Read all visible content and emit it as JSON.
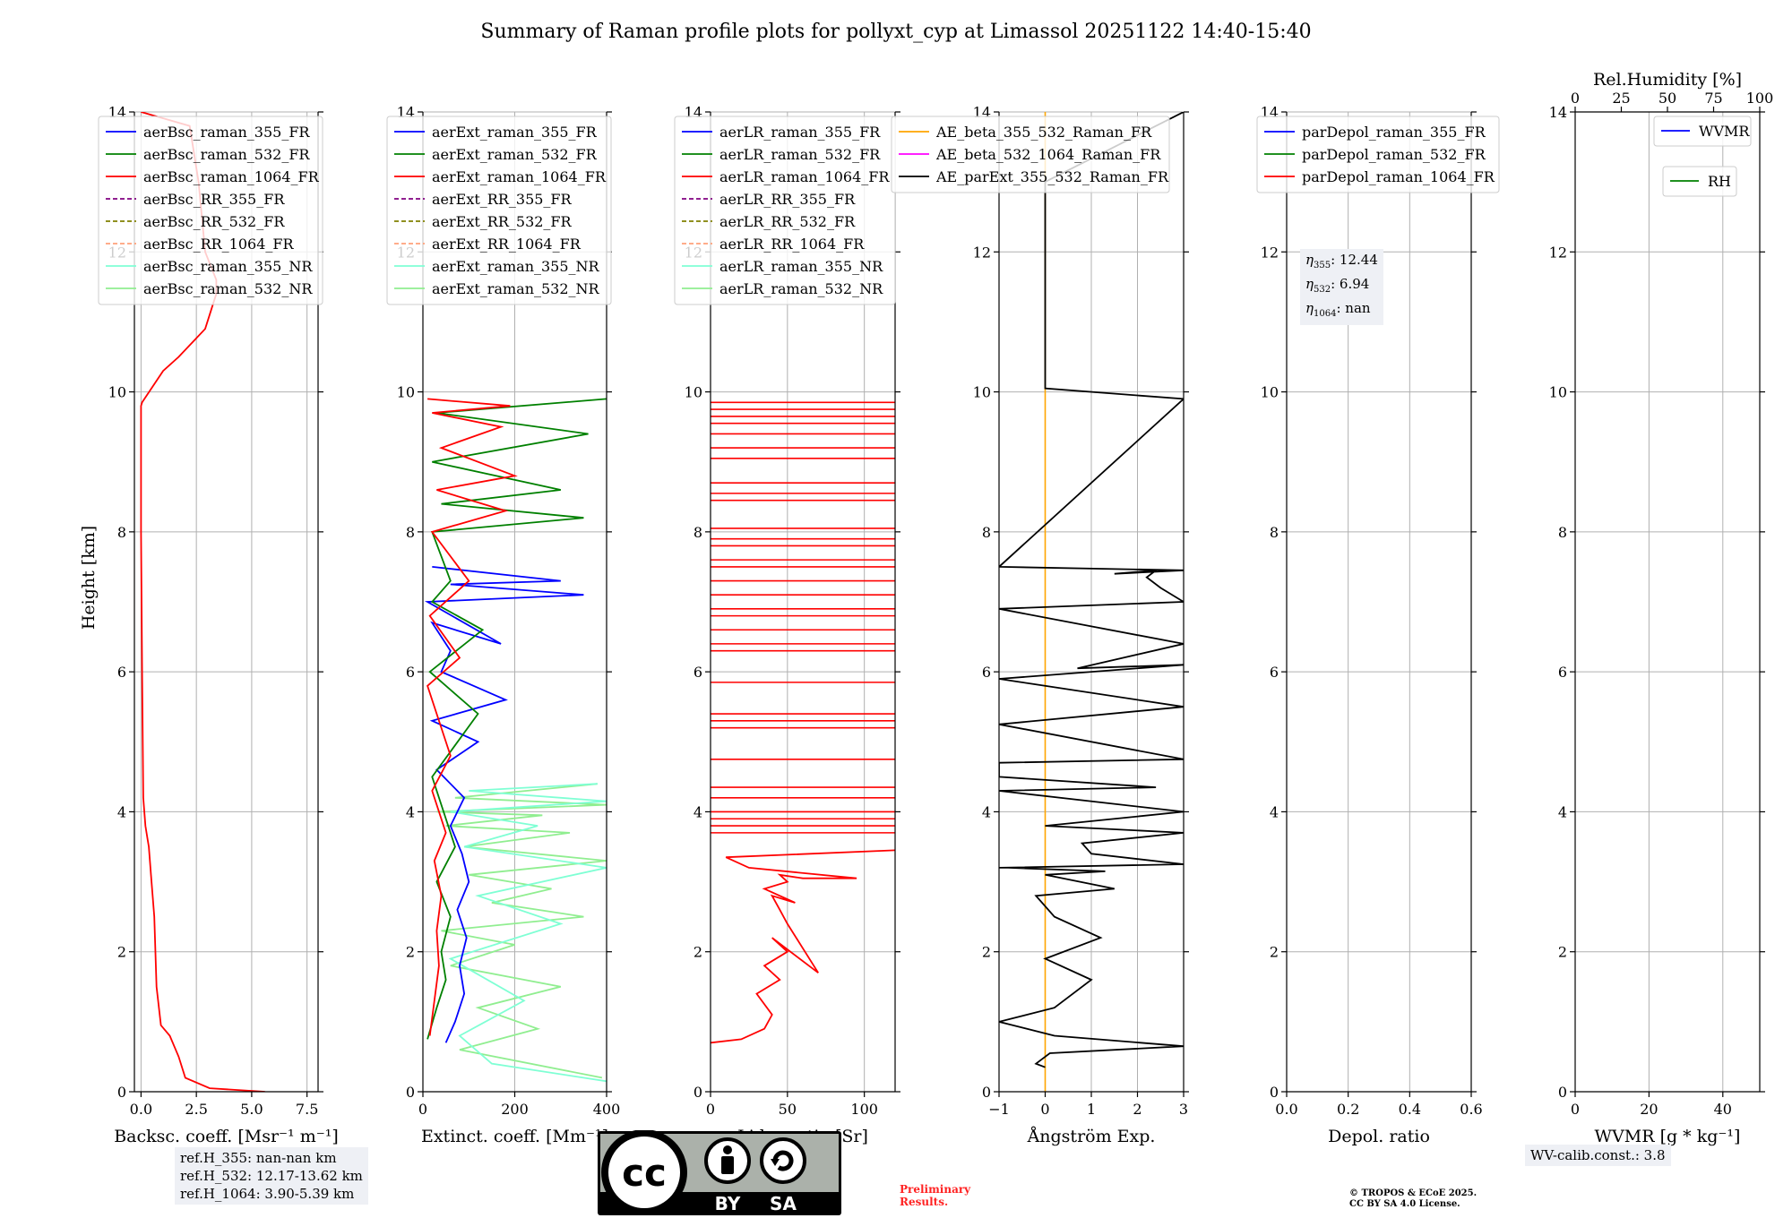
{
  "title": "Summary of Raman profile plots for pollyxt_cyp at Limassol 20251122 14:40-15:40",
  "chart_data": [
    {
      "type": "line",
      "panel": "backscatter",
      "xlabel": "Backsc. coeff. [Msr⁻¹ m⁻¹]",
      "ylabel": "Height [km]",
      "xlim": [
        -0.3,
        8.0
      ],
      "ylim": [
        0,
        14
      ],
      "xticks": [
        0.0,
        2.5,
        5.0,
        7.5
      ],
      "xtick_labels": [
        "0.0",
        "2.5",
        "5.0",
        "7.5"
      ],
      "yticks": [
        0,
        2,
        4,
        6,
        8,
        10,
        12,
        14
      ],
      "grid": true,
      "legend": "top",
      "legend_entries": [
        {
          "label": "aerBsc_raman_355_FR",
          "color": "#0000ff",
          "dash": false
        },
        {
          "label": "aerBsc_raman_532_FR",
          "color": "#008000",
          "dash": false
        },
        {
          "label": "aerBsc_raman_1064_FR",
          "color": "#ff0000",
          "dash": false
        },
        {
          "label": "aerBsc_RR_355_FR",
          "color": "#800080",
          "dash": true
        },
        {
          "label": "aerBsc_RR_532_FR",
          "color": "#808000",
          "dash": true
        },
        {
          "label": "aerBsc_RR_1064_FR",
          "color": "#ffa07a",
          "dash": true
        },
        {
          "label": "aerBsc_raman_355_NR",
          "color": "#7fffd4",
          "dash": false
        },
        {
          "label": "aerBsc_raman_532_NR",
          "color": "#90ee90",
          "dash": false
        }
      ],
      "series": [
        {
          "name": "aerBsc_raman_1064_FR",
          "color": "#ff0000",
          "x": [
            5.6,
            3.1,
            2.0,
            1.7,
            1.3,
            0.9,
            0.7,
            0.6,
            0.45,
            0.4,
            0.35,
            0.3,
            0.2,
            0.1,
            0.05,
            0.0,
            0.0,
            0.0,
            0.05,
            1.0,
            1.7,
            2.9,
            3.2,
            3.4,
            3.4,
            2.9,
            2.6,
            2.2,
            0.0
          ],
          "y": [
            0.0,
            0.05,
            0.2,
            0.5,
            0.8,
            0.95,
            1.5,
            2.5,
            3.1,
            3.3,
            3.5,
            3.6,
            3.8,
            4.2,
            6.0,
            8.0,
            9.5,
            9.8,
            9.85,
            10.3,
            10.5,
            10.9,
            11.2,
            11.4,
            11.6,
            12.0,
            13.0,
            13.8,
            14.0
          ]
        }
      ]
    },
    {
      "type": "line",
      "panel": "extinction",
      "xlabel": "Extinct. coeff. [Mm⁻¹]",
      "xlim": [
        0,
        400
      ],
      "ylim": [
        0,
        14
      ],
      "xticks": [
        0,
        200,
        400
      ],
      "xtick_labels": [
        "0",
        "200",
        "400"
      ],
      "yticks": [
        0,
        2,
        4,
        6,
        8,
        10,
        12,
        14
      ],
      "grid": true,
      "legend": "top",
      "legend_entries": [
        {
          "label": "aerExt_raman_355_FR",
          "color": "#0000ff",
          "dash": false
        },
        {
          "label": "aerExt_raman_532_FR",
          "color": "#008000",
          "dash": false
        },
        {
          "label": "aerExt_raman_1064_FR",
          "color": "#ff0000",
          "dash": false
        },
        {
          "label": "aerExt_RR_355_FR",
          "color": "#800080",
          "dash": true
        },
        {
          "label": "aerExt_RR_532_FR",
          "color": "#808000",
          "dash": true
        },
        {
          "label": "aerExt_RR_1064_FR",
          "color": "#ffa07a",
          "dash": true
        },
        {
          "label": "aerExt_raman_355_NR",
          "color": "#7fffd4",
          "dash": false
        },
        {
          "label": "aerExt_raman_532_NR",
          "color": "#90ee90",
          "dash": false
        }
      ],
      "series": [
        {
          "name": "aerExt_raman_532_NR",
          "color": "#90ee90",
          "x": [
            390,
            80,
            250,
            120,
            300,
            60,
            200,
            40,
            350,
            150,
            280,
            100,
            400,
            90,
            320,
            50,
            260,
            30,
            400,
            70,
            380
          ],
          "y": [
            0.2,
            0.6,
            0.9,
            1.2,
            1.5,
            1.8,
            2.1,
            2.3,
            2.5,
            2.7,
            2.9,
            3.1,
            3.3,
            3.5,
            3.7,
            3.8,
            3.95,
            4.0,
            4.1,
            4.2,
            4.4
          ]
        },
        {
          "name": "aerExt_raman_355_NR",
          "color": "#7fffd4",
          "x": [
            400,
            150,
            80,
            220,
            60,
            300,
            120,
            400,
            90,
            250,
            60,
            400,
            100,
            380
          ],
          "y": [
            0.15,
            0.4,
            0.8,
            1.3,
            1.9,
            2.4,
            2.8,
            3.2,
            3.5,
            3.8,
            4.0,
            4.15,
            4.3,
            4.4
          ]
        },
        {
          "name": "aerExt_raman_355_FR",
          "color": "#0000ff",
          "x": [
            50,
            70,
            90,
            80,
            95,
            75,
            100,
            85,
            60,
            90,
            30,
            120,
            20,
            180,
            40,
            60,
            20,
            170,
            10,
            350,
            60,
            300,
            20
          ],
          "y": [
            0.7,
            1.0,
            1.4,
            1.8,
            2.2,
            2.6,
            3.0,
            3.4,
            3.8,
            4.2,
            4.6,
            5.0,
            5.3,
            5.6,
            6.0,
            6.3,
            6.7,
            6.4,
            7.0,
            7.1,
            7.25,
            7.3,
            7.5
          ]
        },
        {
          "name": "aerExt_raman_532_FR",
          "color": "#008000",
          "x": [
            10,
            30,
            50,
            40,
            60,
            30,
            70,
            20,
            120,
            15,
            130,
            20,
            60,
            20,
            350,
            40,
            300,
            20,
            360,
            30,
            400
          ],
          "y": [
            0.75,
            1.2,
            1.6,
            2.0,
            2.5,
            3.0,
            3.5,
            4.5,
            5.4,
            6.0,
            6.6,
            7.0,
            7.3,
            8.0,
            8.2,
            8.4,
            8.6,
            9.0,
            9.4,
            9.7,
            9.9
          ]
        },
        {
          "name": "aerExt_raman_1064_FR",
          "color": "#ff0000",
          "x": [
            15,
            25,
            35,
            30,
            40,
            25,
            50,
            20,
            60,
            10,
            80,
            15,
            100,
            20,
            180,
            30,
            200,
            40,
            170,
            20,
            190,
            10
          ],
          "y": [
            0.8,
            1.3,
            1.8,
            2.3,
            2.8,
            3.3,
            3.7,
            4.3,
            4.8,
            5.8,
            6.2,
            6.8,
            7.3,
            8.0,
            8.3,
            8.6,
            8.8,
            9.2,
            9.5,
            9.7,
            9.8,
            9.9
          ]
        }
      ]
    },
    {
      "type": "line",
      "panel": "lidar_ratio",
      "xlabel": "Lidar ratio [Sr]",
      "xlim": [
        0,
        120
      ],
      "ylim": [
        0,
        14
      ],
      "xticks": [
        0,
        50,
        100
      ],
      "xtick_labels": [
        "0",
        "50",
        "100"
      ],
      "yticks": [
        0,
        2,
        4,
        6,
        8,
        10,
        12,
        14
      ],
      "grid": true,
      "legend": "top",
      "legend_entries": [
        {
          "label": "aerLR_raman_355_FR",
          "color": "#0000ff",
          "dash": false
        },
        {
          "label": "aerLR_raman_532_FR",
          "color": "#008000",
          "dash": false
        },
        {
          "label": "aerLR_raman_1064_FR",
          "color": "#ff0000",
          "dash": false
        },
        {
          "label": "aerLR_RR_355_FR",
          "color": "#800080",
          "dash": true
        },
        {
          "label": "aerLR_RR_532_FR",
          "color": "#808000",
          "dash": true
        },
        {
          "label": "aerLR_RR_1064_FR",
          "color": "#ffa07a",
          "dash": true
        },
        {
          "label": "aerLR_raman_355_NR",
          "color": "#7fffd4",
          "dash": false
        },
        {
          "label": "aerLR_raman_532_NR",
          "color": "#90ee90",
          "dash": false
        }
      ],
      "series": [
        {
          "name": "aerLR_raman_1064_FR",
          "color": "#ff0000",
          "x": [
            0,
            20,
            35,
            40,
            30,
            45,
            35,
            50,
            40,
            70,
            50,
            45,
            40,
            55,
            35,
            50,
            45,
            60,
            95,
            25,
            10,
            120
          ],
          "y": [
            0.7,
            0.75,
            0.9,
            1.1,
            1.4,
            1.6,
            1.8,
            2.0,
            2.2,
            1.7,
            2.4,
            2.6,
            2.8,
            2.7,
            2.9,
            3.0,
            3.1,
            3.05,
            3.05,
            3.2,
            3.35,
            3.45
          ]
        }
      ],
      "hlines": [
        3.7,
        3.8,
        3.9,
        4.0,
        4.2,
        4.35,
        4.75,
        5.2,
        5.3,
        5.4,
        5.85,
        6.3,
        6.4,
        6.6,
        6.8,
        6.9,
        7.1,
        7.3,
        7.5,
        7.6,
        7.8,
        7.9,
        8.05,
        8.45,
        8.55,
        8.7,
        9.05,
        9.2,
        9.4,
        9.55,
        9.65,
        9.75,
        9.85
      ]
    },
    {
      "type": "line",
      "panel": "angstrom",
      "xlabel": "Ångström Exp.",
      "xlim": [
        -1,
        3
      ],
      "ylim": [
        0,
        14
      ],
      "xticks": [
        -1,
        0,
        1,
        2,
        3
      ],
      "xtick_labels": [
        "−1",
        "0",
        "1",
        "2",
        "3"
      ],
      "yticks": [
        0,
        2,
        4,
        6,
        8,
        10,
        12,
        14
      ],
      "grid": true,
      "legend": "top",
      "legend_entries": [
        {
          "label": "AE_beta_355_532_Raman_FR",
          "color": "#ffa500",
          "dash": false
        },
        {
          "label": "AE_beta_532_1064_Raman_FR",
          "color": "#ff00ff",
          "dash": false
        },
        {
          "label": "AE_parExt_355_532_Raman_FR",
          "color": "#000000",
          "dash": false
        }
      ],
      "vline_orange": 0,
      "series": [
        {
          "name": "AE_parExt_355_532_Raman_FR",
          "color": "#000000",
          "x": [
            0.0,
            -0.2,
            0.1,
            3.0,
            0.2,
            -1.0,
            0.2,
            1.0,
            0.0,
            1.2,
            0.2,
            -0.2,
            1.5,
            0.0,
            1.3,
            -0.8,
            -1.0,
            3.0,
            1.0,
            0.8,
            3.0,
            0.0,
            3.0,
            -1.0,
            2.4,
            -1.0,
            -1.0,
            3.0,
            -1.0,
            3.0,
            -1.0,
            3.0,
            0.7,
            3.0,
            -1.0,
            3.0,
            2.5,
            2.2,
            2.4,
            1.5,
            3.0,
            -1.0,
            3.0,
            0.0,
            0.0,
            3.0
          ],
          "y": [
            0.35,
            0.4,
            0.55,
            0.65,
            0.8,
            1.0,
            1.2,
            1.6,
            1.9,
            2.2,
            2.5,
            2.8,
            2.9,
            3.1,
            3.15,
            3.2,
            3.2,
            3.25,
            3.4,
            3.55,
            3.7,
            3.8,
            4.0,
            4.3,
            4.35,
            4.5,
            4.7,
            4.75,
            5.25,
            5.5,
            5.9,
            6.1,
            6.05,
            6.4,
            6.9,
            7.0,
            7.2,
            7.35,
            7.45,
            7.4,
            7.45,
            7.5,
            9.9,
            10.05,
            13.0,
            14.0
          ]
        }
      ]
    },
    {
      "type": "line",
      "panel": "depolarization",
      "xlabel": "Depol. ratio",
      "xlim": [
        0,
        0.6
      ],
      "ylim": [
        0,
        14
      ],
      "xticks": [
        0.0,
        0.2,
        0.4,
        0.6
      ],
      "xtick_labels": [
        "0.0",
        "0.2",
        "0.4",
        "0.6"
      ],
      "yticks": [
        0,
        2,
        4,
        6,
        8,
        10,
        12,
        14
      ],
      "grid": true,
      "legend": "top-left",
      "legend_entries": [
        {
          "label": "parDepol_raman_355_FR",
          "color": "#0000ff",
          "dash": false
        },
        {
          "label": "parDepol_raman_532_FR",
          "color": "#008000",
          "dash": false
        },
        {
          "label": "parDepol_raman_1064_FR",
          "color": "#ff0000",
          "dash": false
        }
      ],
      "series": []
    },
    {
      "type": "line",
      "panel": "wvmr",
      "xlabel": "WVMR [g * kg⁻¹]",
      "top_xlabel": "Rel.Humidity [%]",
      "xlim": [
        0,
        50
      ],
      "top_xlim": [
        0,
        100
      ],
      "ylim": [
        0,
        14
      ],
      "xticks": [
        0,
        20,
        40
      ],
      "xtick_labels": [
        "0",
        "20",
        "40"
      ],
      "top_xticks": [
        0,
        25,
        50,
        75,
        100
      ],
      "top_xtick_labels": [
        "0",
        "25",
        "50",
        "75",
        "100"
      ],
      "yticks": [
        0,
        2,
        4,
        6,
        8,
        10,
        12,
        14
      ],
      "grid": true,
      "legend": "top-right",
      "legend_entries": [
        {
          "label": "WVMR",
          "color": "#0000ff",
          "dash": false
        },
        {
          "label": "RH",
          "color": "#008000",
          "dash": false
        }
      ],
      "series": []
    }
  ],
  "angstrom_text": {
    "eta355": "12.44",
    "eta532": "6.94",
    "eta1064": "nan"
  },
  "ref_heights": {
    "line1": "ref.H_355: nan-nan km",
    "line2": "ref.H_532: 12.17-13.62 km",
    "line3": "ref.H_1064: 3.90-5.39 km"
  },
  "wv_calib": "WV-calib.const.: 3.8",
  "preliminary": {
    "line1": "Preliminary",
    "line2": "Results."
  },
  "copyright": {
    "line1": "© TROPOS & ECoE 2025.",
    "line2": "CC BY SA 4.0 License."
  },
  "license_badge": {
    "cc": "cc",
    "by": "BY",
    "sa": "SA"
  },
  "colors": {
    "grid": "#b0b0b0",
    "axis": "#000000"
  }
}
